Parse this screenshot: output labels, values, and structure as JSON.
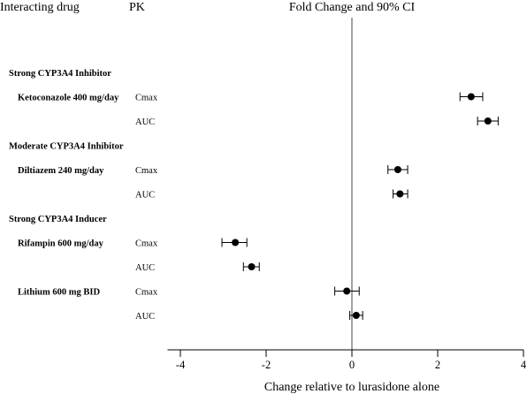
{
  "headers": {
    "drug": "Interacting drug",
    "pk": "PK",
    "title": "Fold Change and 90% CI"
  },
  "chart_data": {
    "type": "forest",
    "title": "Fold Change and 90% CI",
    "xlabel": "Change relative to lurasidone alone",
    "xlim": [
      -4.3,
      4
    ],
    "xticks": [
      "-4",
      "-2",
      "0",
      "2",
      "4"
    ],
    "xtick_values": [
      -4,
      -2,
      0,
      2,
      4
    ],
    "reference_line": 0,
    "rows": [
      {
        "kind": "group",
        "label": "Strong CYP3A4 Inhibitor"
      },
      {
        "kind": "data",
        "drug": "Ketoconazole 400 mg/day",
        "pk": "Cmax",
        "value": 2.78,
        "lo": 2.52,
        "hi": 3.05
      },
      {
        "kind": "data",
        "drug": "",
        "pk": "AUC",
        "value": 3.17,
        "lo": 2.93,
        "hi": 3.41
      },
      {
        "kind": "group",
        "label": "Moderate CYP3A4 Inhibitor"
      },
      {
        "kind": "data",
        "drug": "Diltiazem 240 mg/day",
        "pk": "Cmax",
        "value": 1.07,
        "lo": 0.84,
        "hi": 1.3
      },
      {
        "kind": "data",
        "drug": "",
        "pk": "AUC",
        "value": 1.12,
        "lo": 0.96,
        "hi": 1.3
      },
      {
        "kind": "group",
        "label": "Strong CYP3A4 Inducer"
      },
      {
        "kind": "data",
        "drug": "Rifampin 600 mg/day",
        "pk": "Cmax",
        "value": -2.72,
        "lo": -3.03,
        "hi": -2.45
      },
      {
        "kind": "data",
        "drug": "",
        "pk": "AUC",
        "value": -2.34,
        "lo": -2.53,
        "hi": -2.16
      },
      {
        "kind": "data",
        "drug": "Lithium 600 mg BID",
        "pk": "Cmax",
        "value": -0.12,
        "lo": -0.4,
        "hi": 0.17
      },
      {
        "kind": "data",
        "drug": "",
        "pk": "AUC",
        "value": 0.1,
        "lo": -0.05,
        "hi": 0.25
      }
    ]
  }
}
